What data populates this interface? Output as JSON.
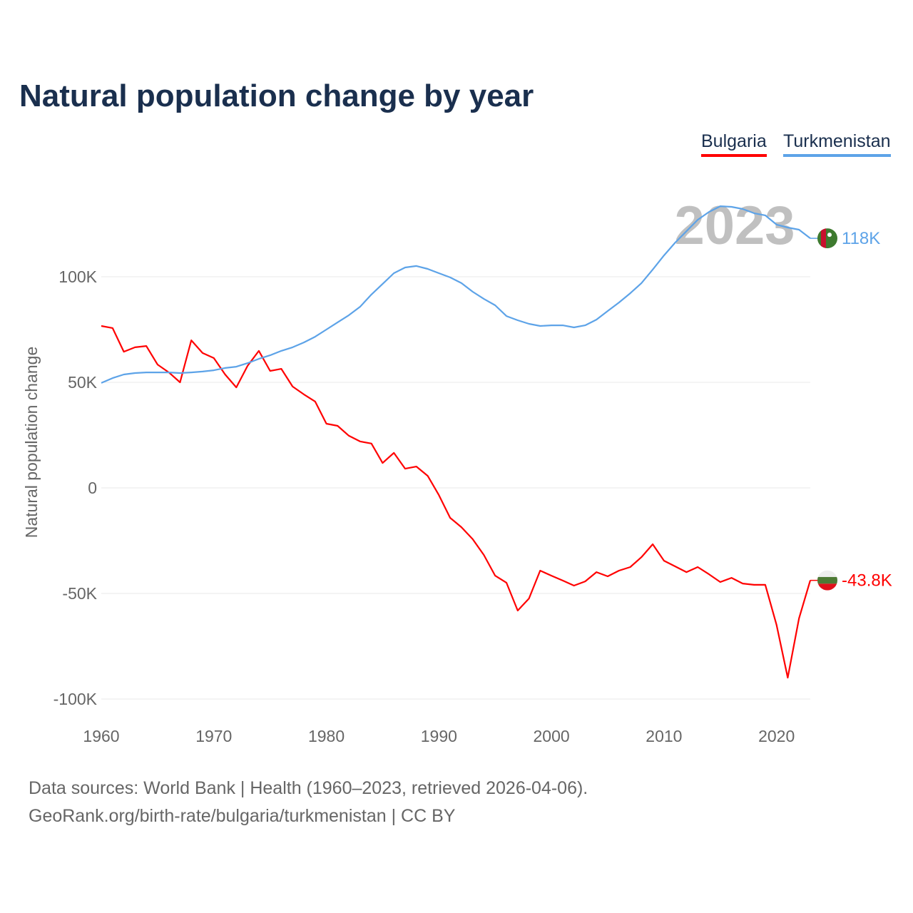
{
  "chart_data": {
    "type": "line",
    "title": "Natural population change by year",
    "xlabel": "",
    "ylabel": "Natural population change",
    "xlim": [
      1960,
      2023
    ],
    "ylim": [
      -100000,
      135000
    ],
    "grid": true,
    "legend_position": "top-right",
    "year_label": "2023",
    "x_ticks": [
      1960,
      1970,
      1980,
      1990,
      2000,
      2010,
      2020
    ],
    "x_tick_labels": [
      "1960",
      "1970",
      "1980",
      "1990",
      "2000",
      "2010",
      "2020"
    ],
    "y_ticks": [
      -100000,
      -50000,
      0,
      50000,
      100000
    ],
    "y_tick_labels": [
      "-100K",
      "-50K",
      "0",
      "50K",
      "100K"
    ],
    "x": [
      1960,
      1961,
      1962,
      1963,
      1964,
      1965,
      1966,
      1967,
      1968,
      1969,
      1970,
      1971,
      1972,
      1973,
      1974,
      1975,
      1976,
      1977,
      1978,
      1979,
      1980,
      1981,
      1982,
      1983,
      1984,
      1985,
      1986,
      1987,
      1988,
      1989,
      1990,
      1991,
      1992,
      1993,
      1994,
      1995,
      1996,
      1997,
      1998,
      1999,
      2000,
      2001,
      2002,
      2003,
      2004,
      2005,
      2006,
      2007,
      2008,
      2009,
      2010,
      2011,
      2012,
      2013,
      2014,
      2015,
      2016,
      2017,
      2018,
      2019,
      2020,
      2021,
      2022,
      2023
    ],
    "series": [
      {
        "name": "Bulgaria",
        "color": "#ff0000",
        "end_label": "-43.8K",
        "flag": "bulgaria-flag",
        "values": [
          76700,
          75700,
          64500,
          66600,
          67200,
          58400,
          54700,
          50000,
          69900,
          63900,
          61500,
          53700,
          47600,
          57800,
          64900,
          55400,
          56400,
          48000,
          44300,
          40900,
          30400,
          29400,
          24700,
          22000,
          21000,
          11800,
          16600,
          9100,
          10100,
          5700,
          -3400,
          -14200,
          -18600,
          -24300,
          -31800,
          -41600,
          -44900,
          -58100,
          -52400,
          -39200,
          -41600,
          -43900,
          -46300,
          -44300,
          -39900,
          -41900,
          -39200,
          -37500,
          -32800,
          -26700,
          -34500,
          -37200,
          -39900,
          -37500,
          -40900,
          -44600,
          -42600,
          -45300,
          -45900,
          -45900,
          -64900,
          -89900,
          -61800,
          -43800
        ]
      },
      {
        "name": "Turkmenistan",
        "color": "#5da3e8",
        "end_label": "118K",
        "flag": "turkmenistan-flag",
        "values": [
          49700,
          52000,
          53700,
          54400,
          54700,
          54700,
          54700,
          54400,
          54700,
          55100,
          55700,
          56800,
          57400,
          59100,
          61100,
          62800,
          64900,
          66600,
          68900,
          71600,
          75000,
          78400,
          81800,
          85800,
          91600,
          96600,
          101700,
          104400,
          105100,
          103700,
          101700,
          99700,
          97000,
          92900,
          89500,
          86500,
          81400,
          79400,
          77700,
          76700,
          77000,
          77000,
          76000,
          77000,
          79700,
          83800,
          87800,
          92200,
          97000,
          103400,
          110100,
          116200,
          121600,
          127000,
          130700,
          133400,
          133100,
          132100,
          130100,
          129100,
          124700,
          123300,
          122300,
          118200
        ]
      }
    ]
  },
  "footer": {
    "line1": "Data sources: World Bank | Health (1960–2023, retrieved 2026-04-06).",
    "line2": "GeoRank.org/birth-rate/bulgaria/turkmenistan | CC BY"
  }
}
